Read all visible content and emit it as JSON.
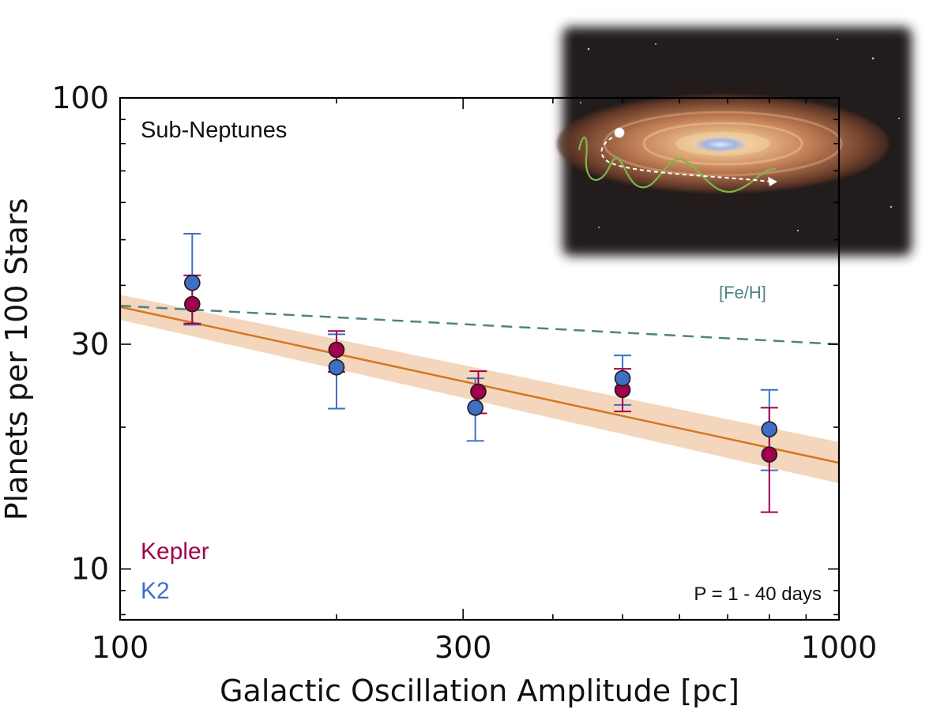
{
  "chart_data": {
    "type": "scatter",
    "title": "",
    "panel_label": "Sub-Neptunes",
    "xlabel": "Galactic Oscillation Amplitude [pc]",
    "ylabel": "Planets per 100 Stars",
    "x_scale": "log",
    "y_scale": "log",
    "xlim": [
      100,
      1000
    ],
    "ylim": [
      7.8,
      100
    ],
    "x_ticks": [
      100,
      300,
      1000
    ],
    "x_tick_labels": [
      "100",
      "300",
      "1000"
    ],
    "y_ticks": [
      10,
      30,
      100
    ],
    "y_tick_labels": [
      "10",
      "30",
      "100"
    ],
    "grid": false,
    "legend_position": "bottom-left",
    "annotation": "P = 1 - 40 days",
    "series": [
      {
        "name": "Kepler",
        "color": "#a0004c",
        "points": [
          {
            "x": 126,
            "y": 36.5,
            "yerr_low": 33.2,
            "yerr_high": 42.0
          },
          {
            "x": 200,
            "y": 29.2,
            "yerr_low": 26.2,
            "yerr_high": 32.0
          },
          {
            "x": 315,
            "y": 23.8,
            "yerr_low": 21.4,
            "yerr_high": 26.3
          },
          {
            "x": 500,
            "y": 24.0,
            "yerr_low": 21.6,
            "yerr_high": 26.6
          },
          {
            "x": 800,
            "y": 17.5,
            "yerr_low": 13.2,
            "yerr_high": 22.0
          }
        ]
      },
      {
        "name": "K2",
        "color": "#3f6fc2",
        "points": [
          {
            "x": 126,
            "y": 40.5,
            "yerr_low": 33.0,
            "yerr_high": 51.5
          },
          {
            "x": 200,
            "y": 26.8,
            "yerr_low": 21.9,
            "yerr_high": 31.5
          },
          {
            "x": 312,
            "y": 22.0,
            "yerr_low": 18.7,
            "yerr_high": 25.4
          },
          {
            "x": 500,
            "y": 25.4,
            "yerr_low": 22.3,
            "yerr_high": 28.4
          },
          {
            "x": 800,
            "y": 19.8,
            "yerr_low": 16.2,
            "yerr_high": 24.0
          }
        ]
      }
    ],
    "fit_line": {
      "x": [
        100,
        1000
      ],
      "y": [
        36.0,
        16.8
      ],
      "band_low": [
        33.8,
        15.2
      ],
      "band_high": [
        38.2,
        18.6
      ],
      "color": "#d2781e",
      "band_color": "#f2cfb1"
    },
    "reference_line": {
      "label": "[Fe/H]",
      "x": [
        100,
        1000
      ],
      "y": [
        36.2,
        30.0
      ],
      "color": "#4f8286"
    }
  }
}
